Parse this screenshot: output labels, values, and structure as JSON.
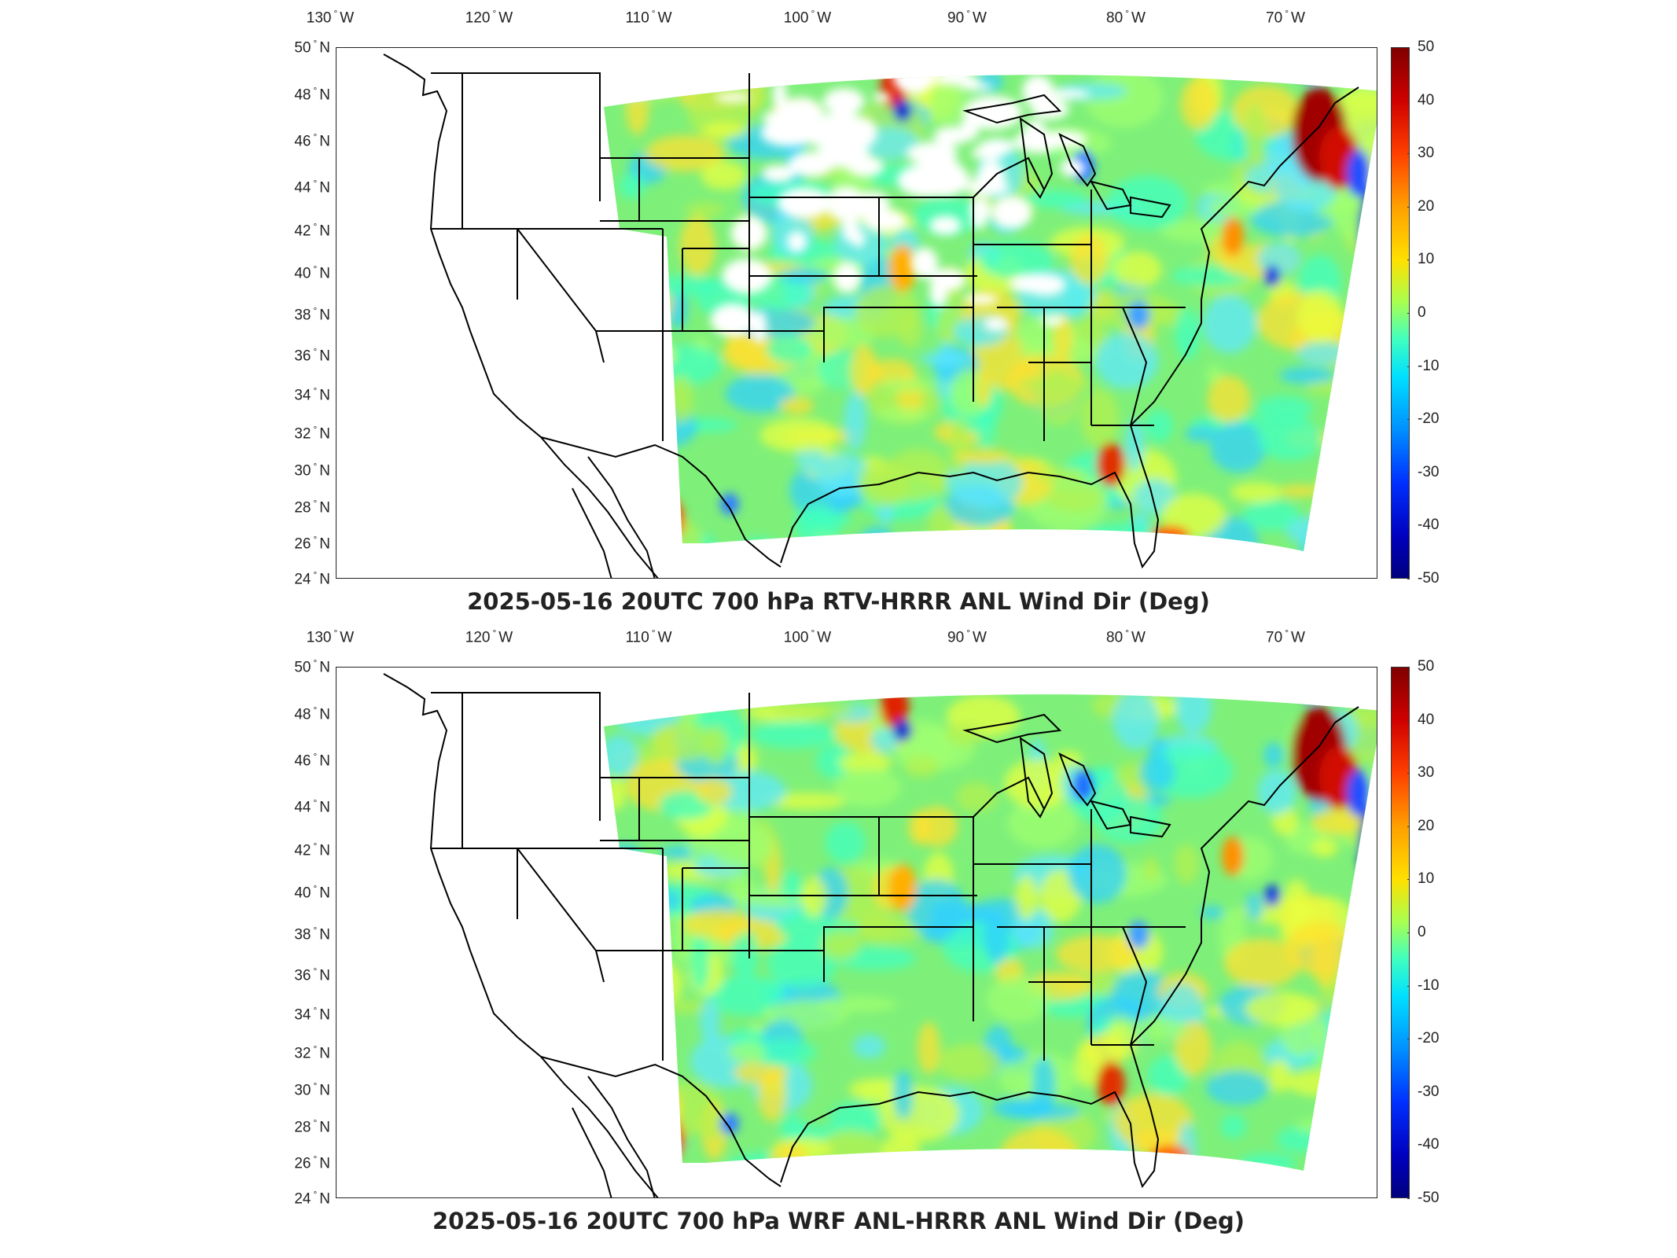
{
  "panels": [
    {
      "title": "2025-05-16 20UTC 700 hPa RTV-HRRR ANL Wind Dir (Deg)",
      "has_gaps": true
    },
    {
      "title": "2025-05-16 20UTC 700 hPa WRF ANL-HRRR ANL Wind Dir (Deg)",
      "has_gaps": false
    }
  ],
  "axes": {
    "lon_ticks": [
      "130",
      "120",
      "110",
      "100",
      "90",
      "80",
      "70"
    ],
    "lon_suffix": "W",
    "lat_ticks": [
      "50",
      "48",
      "46",
      "44",
      "42",
      "40",
      "38",
      "36",
      "34",
      "32",
      "30",
      "28",
      "26",
      "24"
    ],
    "lat_suffix": "N",
    "degree_symbol": "°"
  },
  "colorbar": {
    "ticks": [
      "50",
      "40",
      "30",
      "20",
      "10",
      "0",
      "-10",
      "-20",
      "-30",
      "-40",
      "-50"
    ],
    "colormap": "jet",
    "range": [
      -50,
      50
    ]
  },
  "colors": {
    "background": "#ffffff",
    "borders": "#000000",
    "field_base": "#7ef07a"
  }
}
